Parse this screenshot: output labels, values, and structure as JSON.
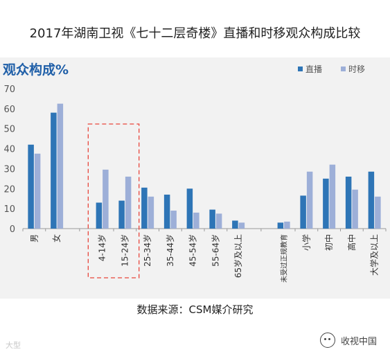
{
  "page": {
    "title": "2017年湖南卫视《七十二层奇楼》直播和时移观众构成比较",
    "source": "数据来源：CSM媒介研究",
    "watermark_left": "大型",
    "watermark_right": "收视中国"
  },
  "colors": {
    "live": "#2e75b6",
    "timeshift": "#9dafd8",
    "panel": "#f2f2f2",
    "highlight_box": "#e8443a",
    "title_blue": "#1f5fa8"
  },
  "chart_data": {
    "type": "bar",
    "title": "观众构成%",
    "ylim": [
      0,
      70
    ],
    "yticks": [
      0,
      10,
      20,
      30,
      40,
      50,
      60,
      70
    ],
    "grid": false,
    "legend_position": "top-right",
    "categories": [
      "男",
      "女",
      "4-14岁",
      "15-24岁",
      "25-34岁",
      "35-44岁",
      "45-54岁",
      "55-64岁",
      "65岁及以上",
      "未受过正规教育",
      "小学",
      "初中",
      "高中",
      "大学及以上"
    ],
    "group_break_after": [
      1,
      8
    ],
    "highlighted_categories": [
      "4-14岁",
      "15-24岁"
    ],
    "series": [
      {
        "name": "直播",
        "values": [
          42,
          58,
          13,
          14,
          20.5,
          17,
          20,
          9.5,
          4,
          3,
          16.5,
          25,
          26,
          28.5
        ]
      },
      {
        "name": "时移",
        "values": [
          37.5,
          62.5,
          29.5,
          26,
          16,
          9,
          8,
          7.5,
          3,
          3.5,
          28.5,
          32,
          19.5,
          16
        ]
      }
    ]
  }
}
